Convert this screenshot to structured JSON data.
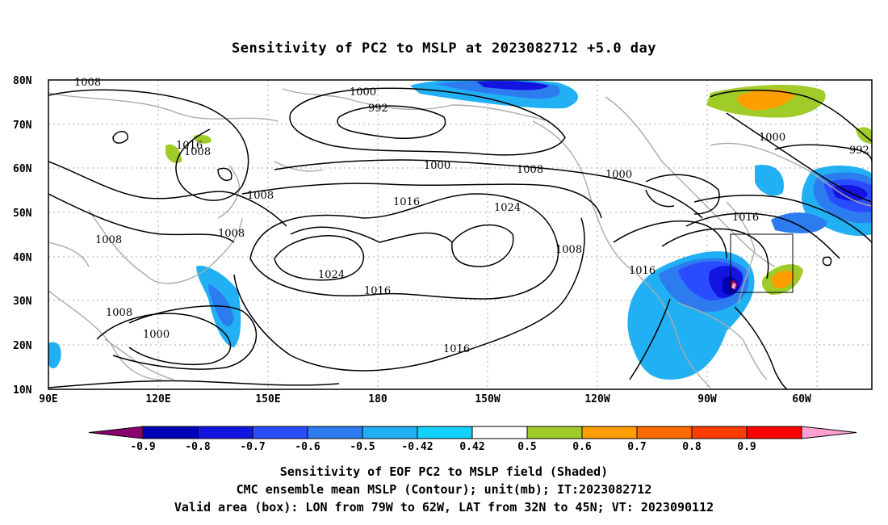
{
  "title": "Sensitivity of PC2 to MSLP at 2023082712 +5.0 day",
  "lat_ticks": [
    "80N",
    "70N",
    "60N",
    "50N",
    "40N",
    "30N",
    "20N",
    "10N"
  ],
  "lon_ticks": [
    "90E",
    "120E",
    "150E",
    "180",
    "150W",
    "120W",
    "90W",
    "60W"
  ],
  "contour_labels": [
    "1008",
    "1000",
    "992",
    "1016",
    "1008",
    "1000",
    "1008",
    "1000",
    "992",
    "1000",
    "1016",
    "1008",
    "1024",
    "1008",
    "1008",
    "1016",
    "1024",
    "1016",
    "1008",
    "1016",
    "1008",
    "1000",
    "1016"
  ],
  "colorbar": {
    "labels": [
      "-0.9",
      "-0.8",
      "-0.7",
      "-0.6",
      "-0.5",
      "-0.42",
      "0.42",
      "0.5",
      "0.6",
      "0.7",
      "0.8",
      "0.9"
    ],
    "colors": [
      "#8a006e",
      "#0000b8",
      "#1414e0",
      "#2a4cff",
      "#2c7cf0",
      "#22b0f4",
      "#14d0ff",
      "#ffffff",
      "#a0cc2a",
      "#ff9e00",
      "#ff6a00",
      "#ff3c00",
      "#ff0000",
      "#ffa0d0"
    ]
  },
  "valid_box": {
    "lon_from": "79W",
    "lon_to": "62W",
    "lat_from": "32N",
    "lat_to": "45N"
  },
  "caption": [
    "Sensitivity of EOF PC2 to MSLP field (Shaded)",
    "CMC ensemble mean MSLP (Contour); unit(mb); IT:2023082712",
    "Valid area (box): LON from 79W to 62W, LAT from 32N to 45N; VT: 2023090112"
  ]
}
